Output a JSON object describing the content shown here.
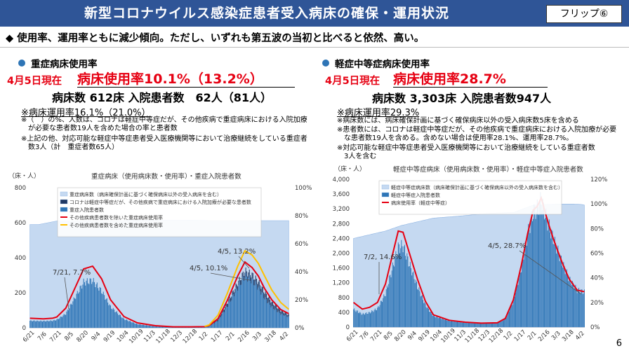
{
  "header": {
    "title": "新型コロナウイルス感染症患者受入病床の確保・運用状況",
    "flip": "フリップ⑥"
  },
  "summary": "◆ 使用率、運用率ともに減少傾向。ただし、いずれも第五波の当初と比べると依然、高い。",
  "page_number": "6",
  "left": {
    "section": "重症病床使用率",
    "date": "4月5日現在",
    "rate": "病床使用率10.1%（13.2%）",
    "beds": "病床数 612床 入院患者数　62人（81人）",
    "operating": "※病床運用率16.1%（21.0%）",
    "notes": [
      "※（　）の%、人数は、コロナは軽症中等症だが、その他疾病で重症病床における入院加療",
      "　が必要な患者数19人を含めた場合の率と患者数",
      "※上記の他、対応可能な軽症中等症患者受入医療機関等において治療継続をしている重症者",
      "　数3人（計　重症者数65人）"
    ],
    "y_unit": "（床・人）",
    "chart_title": "重症病床（使用病床数・使用率）・重症入院患者数"
  },
  "right": {
    "section": "軽症中等症病床使用率",
    "date": "4月5日現在",
    "rate": "病床使用率28.7%",
    "beds": "病床数 3,303床 入院患者数947人",
    "operating": "※病床運用率29.3%",
    "notes": [
      "※病床数には、病床確保計画に基づく確保病床以外の受入病床数5床を含める",
      "※患者数には、コロナは軽症中等症だが、その他疾病で重症病床における入院加療が必要",
      "　な患者数19人を含める。含めない場合は使用率28.1%、運用率28.7%。",
      "※対応可能な軽症中等症患者受入医療機関等において治療継続をしている重症者数",
      "　3人を含む"
    ],
    "y_unit": "（床・人）",
    "chart_title": "軽症中等症病床（使用病床数・使用率）・軽症中等症入院患者数"
  },
  "chart_data": [
    {
      "type": "bar",
      "title": "重症病床（使用病床数・使用率）・重症入院患者数",
      "x_ticks": [
        "6/21",
        "7/6",
        "7/21",
        "8/5",
        "8/20",
        "9/4",
        "9/19",
        "10/4",
        "10/19",
        "11/3",
        "11/18",
        "12/3",
        "12/18",
        "1/2",
        "1/17",
        "2/1",
        "2/16",
        "3/3",
        "3/18",
        "4/2"
      ],
      "ylim": [
        0,
        800
      ],
      "y_ticks": [
        0,
        200,
        400,
        600,
        800
      ],
      "y2lim": [
        0,
        1.0
      ],
      "y2_ticks": [
        "0%",
        "20%",
        "40%",
        "60%",
        "80%",
        "100%"
      ],
      "legend": [
        "重症病床数（病床確保計画に基づく確保病床以外の受入病床を含む）",
        "コロナは軽症中等症だが、その他疾病で重症病床における入院加療が必要な患者数",
        "重症入院患者数",
        "その他疾病患者数を除いた重症病床使用率",
        "その他疾病患者数を含めた重症病床使用率"
      ],
      "colors": {
        "capacity": "#c5d9f1",
        "other": "#1f3864",
        "patients": "#2e75b6",
        "rate_excl": "#e60012",
        "rate_incl": "#ffc000"
      },
      "annotations": [
        "7/21, 7.7%",
        "4/5, 13.2%",
        "4/5, 10.1%"
      ],
      "series": [
        {
          "name": "重症病床数（病床確保計画に基づく確保病床以外の受入病床を含む）",
          "x": [
            0,
            10,
            20,
            30,
            50,
            60,
            70,
            100,
            135,
            160,
            175,
            200,
            225,
            245,
            260,
            275,
            284,
            289
          ],
          "values": [
            590,
            590,
            600,
            610,
            610,
            610,
            612,
            612,
            615,
            615,
            615,
            612,
            612,
            612,
            612,
            612,
            612,
            612
          ]
        },
        {
          "name": "重症入院患者数",
          "x": [
            0,
            15,
            25,
            30,
            40,
            50,
            60,
            70,
            80,
            90,
            105,
            120,
            140,
            160,
            180,
            195,
            200,
            210,
            220,
            232,
            240,
            248,
            255,
            262,
            270,
            280,
            289
          ],
          "values": [
            40,
            38,
            40,
            46,
            80,
            170,
            260,
            270,
            210,
            120,
            50,
            20,
            8,
            4,
            4,
            5,
            10,
            40,
            120,
            230,
            295,
            270,
            230,
            170,
            120,
            80,
            62
          ]
        },
        {
          "name": "その他疾病患者数を除いた重症病床使用率",
          "x": [
            0,
            15,
            25,
            30,
            40,
            50,
            60,
            70,
            80,
            90,
            105,
            120,
            140,
            160,
            180,
            195,
            200,
            210,
            220,
            232,
            240,
            248,
            255,
            262,
            270,
            280,
            289
          ],
          "values": [
            0.068,
            0.064,
            0.068,
            0.077,
            0.14,
            0.28,
            0.42,
            0.44,
            0.35,
            0.2,
            0.08,
            0.035,
            0.015,
            0.007,
            0.007,
            0.008,
            0.016,
            0.065,
            0.19,
            0.37,
            0.47,
            0.43,
            0.37,
            0.28,
            0.2,
            0.13,
            0.101
          ]
        },
        {
          "name": "その他疾病患者数を含めた重症病床使用率",
          "x": [
            195,
            200,
            210,
            220,
            232,
            240,
            248,
            255,
            262,
            270,
            280,
            289
          ],
          "values": [
            0.01,
            0.02,
            0.09,
            0.24,
            0.44,
            0.55,
            0.52,
            0.46,
            0.37,
            0.27,
            0.18,
            0.132
          ]
        }
      ]
    },
    {
      "type": "bar",
      "title": "軽症中等症病床（使用病床数・使用率）・軽症中等症入院患者数",
      "x_ticks": [
        "6/21",
        "7/6",
        "7/21",
        "8/5",
        "8/20",
        "9/4",
        "9/19",
        "10/4",
        "10/19",
        "11/3",
        "11/18",
        "12/3",
        "12/18",
        "1/2",
        "1/17",
        "2/1",
        "2/16",
        "3/3",
        "3/18",
        "4/2"
      ],
      "ylim": [
        0,
        4000
      ],
      "y_ticks": [
        0,
        400,
        800,
        1200,
        1600,
        2000,
        2400,
        2800,
        3200,
        3600,
        4000
      ],
      "y2lim": [
        0,
        1.2
      ],
      "y2_ticks": [
        "0%",
        "20%",
        "40%",
        "60%",
        "80%",
        "100%",
        "120%"
      ],
      "legend": [
        "軽症中等症病床数（病床確保計画に基づく確保病床以外の受入病床数を含む）",
        "軽症中等症入院患者数",
        "病床使用率（軽症中等症）"
      ],
      "colors": {
        "capacity": "#c5d9f1",
        "patients": "#2e75b6",
        "rate": "#e60012"
      },
      "annotations": [
        "7/2, 14.6%",
        "4/5, 28.7%"
      ],
      "series": [
        {
          "name": "軽症中等症病床数（病床確保計画に基づく確保病床以外の受入病床数を含む）",
          "x": [
            0,
            10,
            20,
            40,
            60,
            80,
            100,
            130,
            170,
            200,
            225,
            245,
            260,
            275,
            285,
            289
          ],
          "values": [
            2400,
            2450,
            2500,
            2600,
            2750,
            2850,
            2950,
            3000,
            3080,
            3100,
            3300,
            3320,
            3330,
            3330,
            3320,
            3303
          ]
        },
        {
          "name": "軽症中等症入院患者数",
          "x": [
            0,
            11,
            20,
            30,
            40,
            50,
            56,
            62,
            70,
            80,
            90,
            100,
            120,
            140,
            160,
            180,
            190,
            200,
            210,
            218,
            225,
            230,
            235,
            240,
            245,
            250,
            255,
            262,
            270,
            280,
            289
          ],
          "values": [
            480,
            350,
            390,
            500,
            900,
            1700,
            2150,
            2200,
            1700,
            1100,
            600,
            300,
            170,
            120,
            100,
            110,
            220,
            700,
            1600,
            2500,
            3100,
            3200,
            3450,
            3050,
            2700,
            2400,
            2100,
            1700,
            1300,
            1000,
            947
          ]
        },
        {
          "name": "病床使用率（軽症中等症）",
          "x": [
            0,
            11,
            20,
            30,
            40,
            50,
            56,
            62,
            70,
            80,
            90,
            100,
            120,
            140,
            160,
            180,
            190,
            200,
            210,
            218,
            225,
            230,
            235,
            240,
            245,
            250,
            255,
            262,
            270,
            280,
            289
          ],
          "values": [
            0.2,
            0.146,
            0.16,
            0.2,
            0.35,
            0.62,
            0.78,
            0.77,
            0.6,
            0.39,
            0.21,
            0.1,
            0.055,
            0.04,
            0.032,
            0.035,
            0.07,
            0.22,
            0.5,
            0.76,
            0.95,
            0.98,
            1.05,
            0.93,
            0.82,
            0.72,
            0.63,
            0.51,
            0.39,
            0.3,
            0.287
          ]
        }
      ]
    }
  ]
}
